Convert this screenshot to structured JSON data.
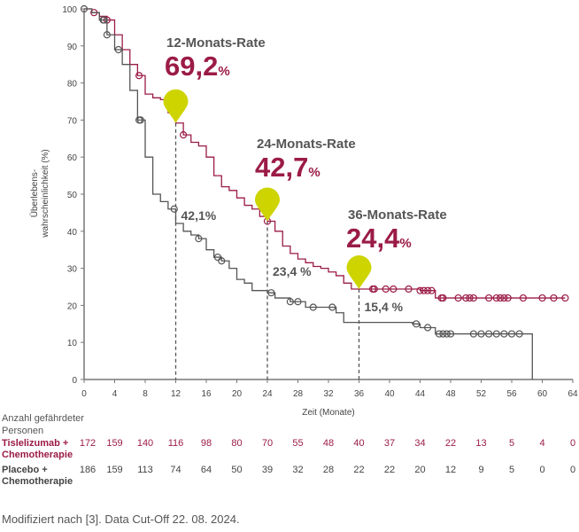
{
  "chart_data": {
    "type": "line",
    "title": "",
    "xlabel": "Zeit (Monate)",
    "ylabel": "Überlebens-wahrscheinlichkeit (%)",
    "ylabel_lines": [
      "Überlebens-",
      "wahrscheinlichkeit (%)"
    ],
    "xlim": [
      0,
      64
    ],
    "ylim": [
      0,
      100
    ],
    "xticks": [
      0,
      4,
      8,
      12,
      16,
      20,
      24,
      28,
      32,
      36,
      40,
      44,
      48,
      52,
      56,
      60,
      64
    ],
    "yticks": [
      0,
      10,
      20,
      30,
      40,
      50,
      60,
      70,
      80,
      90,
      100
    ],
    "series": [
      {
        "name": "Tislelizumab + Chemotherapie",
        "color": "#9b1b47",
        "steps": [
          [
            0,
            100
          ],
          [
            1,
            99
          ],
          [
            2,
            98
          ],
          [
            3,
            97
          ],
          [
            4,
            93
          ],
          [
            5,
            89
          ],
          [
            6,
            85
          ],
          [
            7,
            82
          ],
          [
            8,
            77
          ],
          [
            9,
            76
          ],
          [
            10,
            75.5
          ],
          [
            11,
            72
          ],
          [
            12,
            69.2
          ],
          [
            13,
            66
          ],
          [
            14,
            64
          ],
          [
            15,
            63
          ],
          [
            16,
            60
          ],
          [
            17,
            55
          ],
          [
            18,
            52
          ],
          [
            19,
            51
          ],
          [
            20,
            49
          ],
          [
            21,
            47
          ],
          [
            22,
            46
          ],
          [
            23,
            44
          ],
          [
            24,
            42.7
          ],
          [
            25,
            40
          ],
          [
            26,
            36
          ],
          [
            27,
            34
          ],
          [
            28,
            32.5
          ],
          [
            29,
            31.5
          ],
          [
            30,
            30.5
          ],
          [
            31,
            30
          ],
          [
            32,
            29
          ],
          [
            33,
            28
          ],
          [
            34,
            26
          ],
          [
            35,
            24.4
          ],
          [
            44,
            24
          ],
          [
            46,
            22
          ],
          [
            63,
            22
          ]
        ],
        "censored": [
          1.3,
          3,
          7.2,
          13,
          24,
          37.8,
          38,
          39.5,
          40.5,
          42.5,
          44,
          44.5,
          45,
          45.5,
          46.8,
          47,
          49,
          50,
          50.5,
          51,
          53,
          54,
          54.5,
          55,
          55.5,
          57.5,
          60,
          61.5,
          63
        ]
      },
      {
        "name": "Placebo + Chemotherapie",
        "color": "#555555",
        "steps": [
          [
            0,
            100
          ],
          [
            1,
            99
          ],
          [
            2,
            97
          ],
          [
            3,
            93
          ],
          [
            4,
            89
          ],
          [
            5,
            85
          ],
          [
            6,
            78
          ],
          [
            7,
            70
          ],
          [
            8,
            60
          ],
          [
            9,
            50
          ],
          [
            10,
            48
          ],
          [
            11,
            46
          ],
          [
            12,
            42.1
          ],
          [
            13,
            40
          ],
          [
            14,
            39
          ],
          [
            15,
            38
          ],
          [
            16,
            35
          ],
          [
            17,
            33
          ],
          [
            18,
            32
          ],
          [
            19,
            30
          ],
          [
            20,
            27
          ],
          [
            21,
            26
          ],
          [
            22,
            24
          ],
          [
            24,
            23.4
          ],
          [
            25,
            22
          ],
          [
            27,
            21
          ],
          [
            29,
            19.5
          ],
          [
            33,
            18
          ],
          [
            34,
            15.4
          ],
          [
            43,
            15
          ],
          [
            44,
            14
          ],
          [
            46,
            12.3
          ],
          [
            58.7,
            12.3
          ],
          [
            58.7,
            0
          ]
        ],
        "censored": [
          0,
          2.5,
          2.6,
          3,
          4.5,
          7.2,
          7.4,
          11.8,
          15,
          17.5,
          18,
          24.5,
          27,
          28,
          30,
          32.5,
          43.5,
          45,
          46.5,
          47,
          47.5,
          48,
          51,
          52,
          53,
          54,
          55,
          56,
          57
        ]
      }
    ],
    "annotations": [
      {
        "month": 12,
        "label": "12-Monats-Rate",
        "value": "69,2",
        "pct": "%",
        "placebo": "42,1%",
        "tisle_y": 69.2,
        "placebo_y": 42.1
      },
      {
        "month": 24,
        "label": "24-Monats-Rate",
        "value": "42,7",
        "pct": "%",
        "placebo": "23,4 %",
        "tisle_y": 42.7,
        "placebo_y": 23.4
      },
      {
        "month": 36,
        "label": "36-Monats-Rate",
        "value": "24,4",
        "pct": "%",
        "placebo": "15,4 %",
        "tisle_y": 24.4,
        "placebo_y": 15.4
      }
    ],
    "marker_color": "#cdd400"
  },
  "risk_table": {
    "title_lines": [
      "Anzahl gefährdeter",
      "Personen"
    ],
    "rows": [
      {
        "label_lines": [
          "Tislelizumab +",
          "Chemotherapie"
        ],
        "color": "#9b1b47",
        "values": [
          172,
          159,
          140,
          116,
          98,
          80,
          70,
          55,
          48,
          40,
          37,
          34,
          22,
          13,
          5,
          4,
          0
        ]
      },
      {
        "label_lines": [
          "Placebo +",
          "Chemotherapie"
        ],
        "color": "#444444",
        "values": [
          186,
          159,
          113,
          74,
          64,
          50,
          39,
          32,
          28,
          22,
          22,
          20,
          12,
          9,
          5,
          0,
          0
        ]
      }
    ]
  },
  "footer": "Modifiziert nach [3]. Data Cut-Off 22. 08. 2024."
}
